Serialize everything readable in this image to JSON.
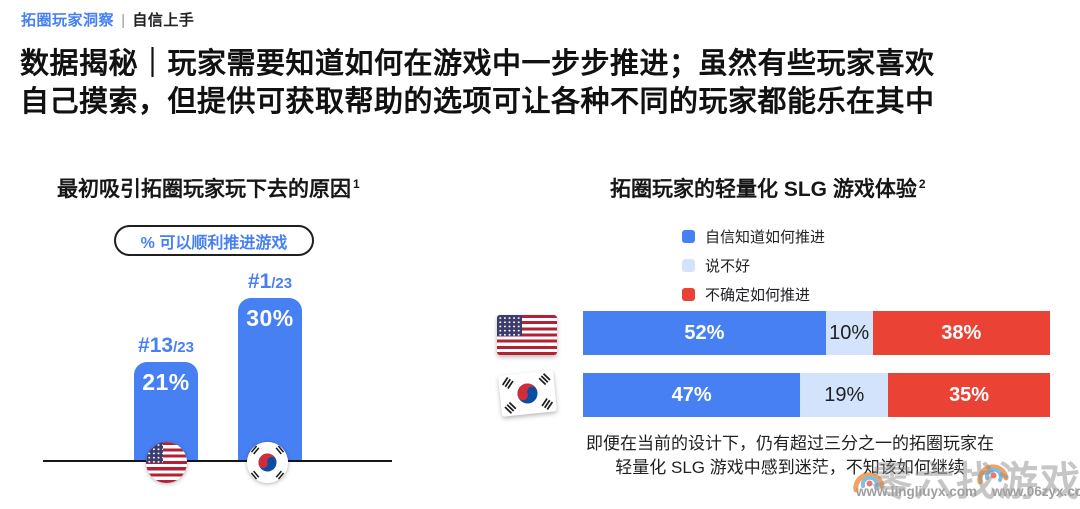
{
  "eyebrow": {
    "brand": "拓圈玩家洞察",
    "separator": "|",
    "section": "自信上手"
  },
  "main_title": {
    "line1": "数据揭秘｜玩家需要知道如何在游戏中一步步推进；虽然有些玩家喜欢",
    "line2": "自己摸索，但提供可获取帮助的选项可让各种不同的玩家都能乐在其中"
  },
  "left_chart": {
    "title": "最初吸引拓圈玩家玩下去的原因",
    "footnote": "1",
    "badge": "% 可以顺利推进游戏",
    "bars": [
      {
        "country": "美国",
        "rank": "#13",
        "rank_total": "/23",
        "value": "21%"
      },
      {
        "country": "韩国",
        "rank": "#1",
        "rank_total": "/23",
        "value": "30%"
      }
    ]
  },
  "right_chart": {
    "title": "拓圈玩家的轻量化 SLG 游戏体验",
    "footnote": "2",
    "legend": [
      {
        "label": "自信知道如何推进",
        "color": "#4780F2"
      },
      {
        "label": "说不好",
        "color": "#D3E3FC"
      },
      {
        "label": "不确定如何推进",
        "color": "#EA4335"
      }
    ],
    "rows": [
      {
        "country": "美国",
        "segments": [
          {
            "value": 52,
            "label": "52%"
          },
          {
            "value": 10,
            "label": "10%"
          },
          {
            "value": 38,
            "label": "38%"
          }
        ]
      },
      {
        "country": "韩国",
        "segments": [
          {
            "value": 47,
            "label": "47%"
          },
          {
            "value": 19,
            "label": "19%"
          },
          {
            "value": 35,
            "label": "35%"
          }
        ]
      }
    ],
    "caption_line1": "即便在当前的设计下，仍有超过三分之一的拓圈玩家在",
    "caption_line2": "轻量化 SLG 游戏中感到迷茫，不知该如何继续"
  },
  "watermark": {
    "brand_text": "零六找游戏",
    "url1": "www.lingliuyx.com",
    "url2": "www.06zyx.com"
  },
  "colors": {
    "accent_blue": "#4780F2",
    "light_blue": "#D3E3FC",
    "red": "#EA4335",
    "text_dark": "#202124"
  },
  "chart_data": [
    {
      "type": "bar",
      "title": "最初吸引拓圈玩家玩下去的原因 1",
      "subtitle": "% 可以顺利推进游戏",
      "categories": [
        "美国",
        "韩国"
      ],
      "values": [
        21,
        30
      ],
      "annotations": [
        "#13/23",
        "#1/23"
      ],
      "unit": "%",
      "ylabel": "",
      "xlabel": "",
      "grid": false,
      "bar_color": "#4780F2"
    },
    {
      "type": "bar",
      "orientation": "horizontal-stacked",
      "title": "拓圈玩家的轻量化 SLG 游戏体验 2",
      "categories": [
        "美国",
        "韩国"
      ],
      "series": [
        {
          "name": "自信知道如何推进",
          "values": [
            52,
            47
          ],
          "color": "#4780F2"
        },
        {
          "name": "说不好",
          "values": [
            10,
            19
          ],
          "color": "#D3E3FC"
        },
        {
          "name": "不确定如何推进",
          "values": [
            38,
            35
          ],
          "color": "#EA4335"
        }
      ],
      "xlim": [
        0,
        100
      ],
      "unit": "%",
      "legend_position": "top",
      "grid": false,
      "caption": "即便在当前的设计下，仍有超过三分之一的拓圈玩家在轻量化 SLG 游戏中感到迷茫，不知该如何继续"
    }
  ]
}
